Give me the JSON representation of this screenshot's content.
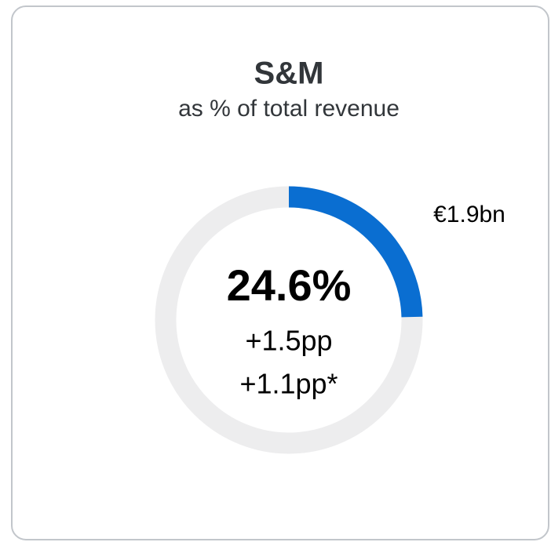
{
  "chart_data": {
    "type": "donut",
    "title": "S&M",
    "subtitle": "as % of total revenue",
    "values": [
      24.6
    ],
    "value_labels": [
      "24.6%"
    ],
    "color": "#0a6ed1",
    "track_color": "#ededee",
    "annotations": [
      "€1.9bn",
      "+1.5pp",
      "+1.1pp*"
    ]
  }
}
